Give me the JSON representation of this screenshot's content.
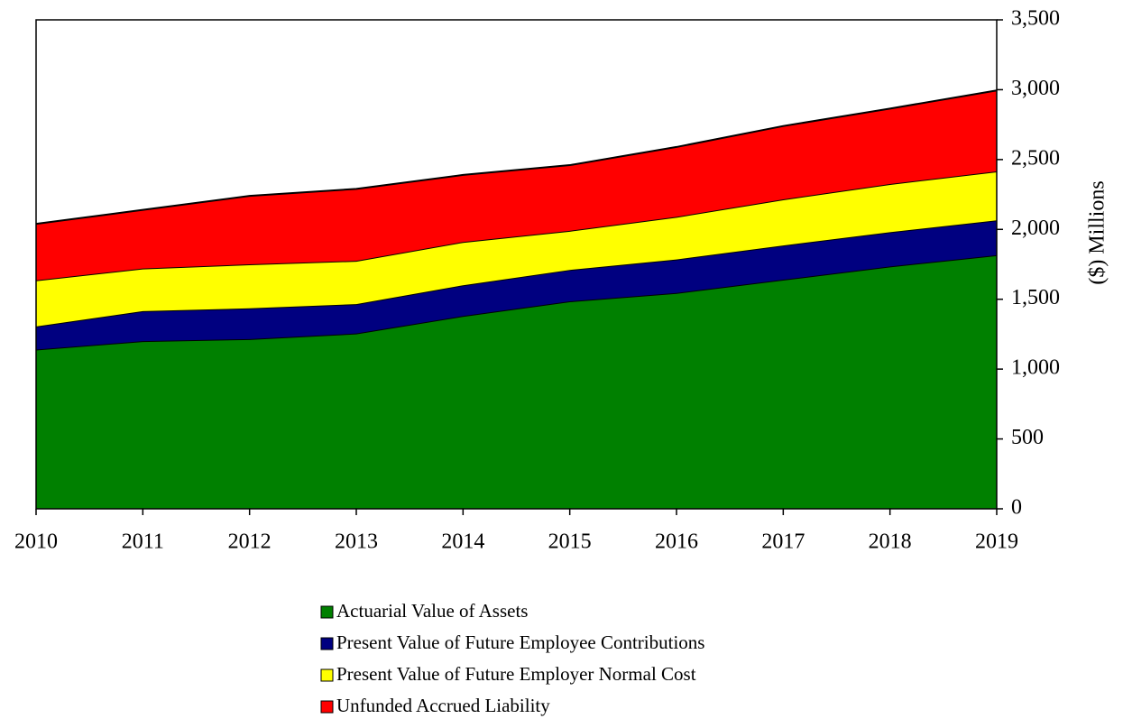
{
  "chart_data": {
    "type": "stacked_area",
    "ylabel": "($) Millions",
    "x": [
      2010,
      2011,
      2012,
      2013,
      2014,
      2015,
      2016,
      2017,
      2018,
      2019
    ],
    "xlim": [
      2010,
      2019
    ],
    "xticks": [
      2010,
      2011,
      2012,
      2013,
      2014,
      2015,
      2016,
      2017,
      2018,
      2019
    ],
    "ylim": [
      0,
      3500
    ],
    "yticks": [
      0,
      500,
      {
        "value": 1000,
        "label": "1,000"
      },
      {
        "value": 1500,
        "label": "1,500"
      },
      {
        "value": 2000,
        "label": "2,000"
      },
      {
        "value": 2500,
        "label": "2,500"
      },
      {
        "value": 3000,
        "label": "3,000"
      },
      {
        "value": 3500,
        "label": "3,500"
      }
    ],
    "y_axis_side": "right",
    "grid": false,
    "legend": "bottom",
    "series": [
      {
        "name": "Actuarial Value of Assets",
        "color": "#008000",
        "values": [
          1140,
          1200,
          1215,
          1255,
          1380,
          1485,
          1545,
          1640,
          1735,
          1815
        ]
      },
      {
        "name": "Present Value of Future Employee Contributions",
        "color": "#000080",
        "values": [
          165,
          215,
          220,
          210,
          220,
          225,
          240,
          245,
          245,
          250
        ]
      },
      {
        "name": "Present Value of Future Employer Normal Cost",
        "color": "#ffff00",
        "values": [
          330,
          305,
          315,
          310,
          310,
          280,
          305,
          330,
          345,
          350
        ]
      },
      {
        "name": "Unfunded Accrued Liability",
        "color": "#ff0000",
        "values": [
          405,
          420,
          490,
          515,
          480,
          470,
          500,
          525,
          540,
          580
        ]
      }
    ]
  }
}
